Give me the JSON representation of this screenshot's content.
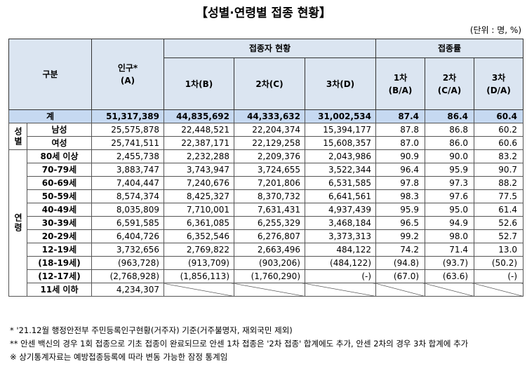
{
  "title": "【성별·연령별 접종 현황】",
  "unit": "(단위 : 명, %)",
  "header": {
    "category": "구분",
    "population": {
      "label": "인구*",
      "sub": "(A)"
    },
    "vaccinated": {
      "label": "접종자 현황",
      "cols": [
        "1차(B)",
        "2차(C)",
        "3차(D)"
      ]
    },
    "rate": {
      "label": "접종률",
      "cols": [
        {
          "label": "1차",
          "sub": "(B/A)"
        },
        {
          "label": "2차",
          "sub": "(C/A)"
        },
        {
          "label": "3차",
          "sub": "(D/A)"
        }
      ]
    }
  },
  "total": {
    "label": "계",
    "cells": [
      "51,317,389",
      "44,835,692",
      "44,333,632",
      "31,002,534",
      "87.4",
      "86.4",
      "60.4"
    ]
  },
  "groups": [
    {
      "label": "성별",
      "rows": [
        {
          "label": "남성",
          "cells": [
            "25,575,878",
            "22,448,521",
            "22,204,374",
            "15,394,177",
            "87.8",
            "86.8",
            "60.2"
          ]
        },
        {
          "label": "여성",
          "cells": [
            "25,741,511",
            "22,387,171",
            "22,129,258",
            "15,608,357",
            "87.0",
            "86.0",
            "60.6"
          ]
        }
      ]
    },
    {
      "label": "연령",
      "rows": [
        {
          "label": "80세 이상",
          "cells": [
            "2,455,738",
            "2,232,288",
            "2,209,376",
            "2,043,986",
            "90.9",
            "90.0",
            "83.2"
          ]
        },
        {
          "label": "70-79세",
          "cells": [
            "3,883,747",
            "3,743,947",
            "3,724,655",
            "3,522,344",
            "96.4",
            "95.9",
            "90.7"
          ]
        },
        {
          "label": "60-69세",
          "cells": [
            "7,404,447",
            "7,240,676",
            "7,201,806",
            "6,531,585",
            "97.8",
            "97.3",
            "88.2"
          ]
        },
        {
          "label": "50-59세",
          "cells": [
            "8,574,374",
            "8,425,327",
            "8,370,732",
            "6,641,561",
            "98.3",
            "97.6",
            "77.5"
          ]
        },
        {
          "label": "40-49세",
          "cells": [
            "8,035,809",
            "7,710,001",
            "7,631,431",
            "4,937,439",
            "95.9",
            "95.0",
            "61.4"
          ]
        },
        {
          "label": "30-39세",
          "cells": [
            "6,591,585",
            "6,361,085",
            "6,255,329",
            "3,468,184",
            "96.5",
            "94.9",
            "52.6"
          ]
        },
        {
          "label": "20-29세",
          "cells": [
            "6,404,726",
            "6,352,546",
            "6,276,807",
            "3,373,313",
            "99.2",
            "98.0",
            "52.7"
          ]
        },
        {
          "label": "12-19세",
          "cells": [
            "3,732,656",
            "2,769,822",
            "2,663,496",
            "484,122",
            "74.2",
            "71.4",
            "13.0"
          ]
        },
        {
          "label": "(18-19세)",
          "cells": [
            "(963,728)",
            "(913,709)",
            "(903,206)",
            "(484,122)",
            "(94.8)",
            "(93.7)",
            "(50.2)"
          ]
        },
        {
          "label": "(12-17세)",
          "cells": [
            "(2,768,928)",
            "(1,856,113)",
            "(1,760,290)",
            "(-)",
            "(67.0)",
            "(63.6)",
            "(-)"
          ]
        },
        {
          "label": "11세 이하",
          "cells": [
            "4,234,307"
          ]
        }
      ]
    }
  ],
  "footnotes": [
    "* '21.12월 행정안전부 주민등록인구현황(거주자) 기준(거주불명자, 재외국민 제외)",
    "** 안센 백신의 경우 1회 접종으로 기초 접종이 완료되므로 안센 1차 접종은 '2차 접종' 합계에도 추가, 안센 2차의 경우 3차 합계에 추가",
    "※ 상기통계자료는 예방접종등록에 따라 변동 가능한 잠정 통계임"
  ]
}
